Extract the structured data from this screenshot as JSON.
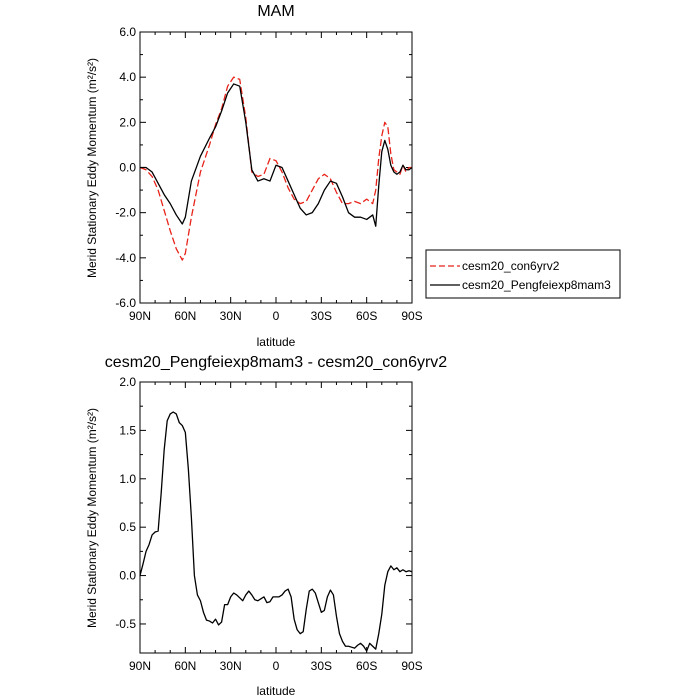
{
  "colors": {
    "control": "#e8231a",
    "experiment": "#000000"
  },
  "chart_data": [
    {
      "type": "line",
      "title": "MAM",
      "xlabel": "latitude",
      "ylabel": "Merid Stationary Eddy Momentum (m²/s²)",
      "xlim": [
        90,
        -90
      ],
      "ylim": [
        -6,
        6
      ],
      "xticks": [
        90,
        60,
        30,
        0,
        -30,
        -60,
        -90
      ],
      "xtick_labels": [
        "90N",
        "60N",
        "30N",
        "0",
        "30S",
        "60S",
        "90S"
      ],
      "yticks": [
        -6,
        -4,
        -2,
        0,
        2,
        4,
        6
      ],
      "ytick_labels": [
        "-6.0",
        "-4.0",
        "-2.0",
        "0.0",
        "2.0",
        "4.0",
        "6.0"
      ],
      "legend_position": "right",
      "series": [
        {
          "name": "cesm20_con6yrv2",
          "style": "dashed",
          "x": [
            90,
            86,
            82,
            78,
            74,
            70,
            66,
            62,
            60,
            56,
            50,
            44,
            40,
            36,
            32,
            28,
            24,
            20,
            16,
            12,
            8,
            4,
            0,
            -4,
            -8,
            -12,
            -16,
            -20,
            -24,
            -28,
            -32,
            -36,
            -40,
            -44,
            -48,
            -52,
            -56,
            -60,
            -64,
            -66,
            -68,
            -70,
            -72,
            -74,
            -76,
            -78,
            -80,
            -82,
            -84,
            -86,
            -88,
            -90
          ],
          "y": [
            0.0,
            -0.1,
            -0.4,
            -1.0,
            -1.9,
            -2.8,
            -3.6,
            -4.1,
            -3.8,
            -2.2,
            -0.2,
            1.0,
            1.9,
            2.6,
            3.6,
            4.0,
            3.9,
            2.2,
            -0.2,
            -0.4,
            -0.3,
            0.4,
            0.3,
            -0.2,
            -0.9,
            -1.4,
            -1.6,
            -1.5,
            -1.0,
            -0.5,
            -0.3,
            -0.5,
            -1.1,
            -1.6,
            -1.6,
            -1.5,
            -1.6,
            -1.4,
            -1.6,
            -1.0,
            0.4,
            1.4,
            2.0,
            1.8,
            0.6,
            -0.1,
            -0.2,
            -0.3,
            0.1,
            -0.2,
            0.0,
            0.0
          ]
        },
        {
          "name": "cesm20_Pengfeiexp8mam3",
          "style": "solid",
          "x": [
            90,
            86,
            82,
            78,
            74,
            70,
            66,
            62,
            60,
            56,
            50,
            44,
            40,
            36,
            32,
            28,
            24,
            20,
            16,
            12,
            8,
            4,
            0,
            -4,
            -8,
            -12,
            -16,
            -20,
            -24,
            -28,
            -32,
            -36,
            -40,
            -44,
            -48,
            -52,
            -56,
            -60,
            -64,
            -66,
            -68,
            -70,
            -72,
            -74,
            -76,
            -78,
            -80,
            -82,
            -84,
            -86,
            -88,
            -90
          ],
          "y": [
            0.0,
            0.0,
            -0.2,
            -0.7,
            -1.2,
            -1.6,
            -2.1,
            -2.5,
            -2.2,
            -0.6,
            0.5,
            1.3,
            1.8,
            2.5,
            3.3,
            3.7,
            3.6,
            2.0,
            -0.1,
            -0.6,
            -0.5,
            -0.6,
            0.1,
            0.0,
            -0.6,
            -1.2,
            -1.8,
            -2.1,
            -2.0,
            -1.6,
            -1.0,
            -0.6,
            -0.7,
            -1.3,
            -2.0,
            -2.2,
            -2.2,
            -2.3,
            -2.1,
            -2.6,
            -0.8,
            0.7,
            1.2,
            0.8,
            0.1,
            -0.2,
            -0.3,
            -0.2,
            0.1,
            -0.1,
            -0.1,
            0.0
          ]
        }
      ]
    },
    {
      "type": "line",
      "title": "cesm20_Pengfeiexp8mam3 - cesm20_con6yrv2",
      "xlabel": "latitude",
      "ylabel": "Merid Stationary Eddy Momentum (m²/s²)",
      "xlim": [
        90,
        -90
      ],
      "ylim": [
        -0.8,
        2.0
      ],
      "xticks": [
        90,
        60,
        30,
        0,
        -30,
        -60,
        -90
      ],
      "xtick_labels": [
        "90N",
        "60N",
        "30N",
        "0",
        "30S",
        "60S",
        "90S"
      ],
      "yticks": [
        -0.5,
        0.0,
        0.5,
        1.0,
        1.5,
        2.0
      ],
      "ytick_labels": [
        "-0.5",
        "0.0",
        "0.5",
        "1.0",
        "1.5",
        "2.0"
      ],
      "series": [
        {
          "style": "solid",
          "x": [
            90,
            88,
            86,
            84,
            82,
            80,
            78,
            76,
            74,
            72,
            70,
            68,
            66,
            64,
            62,
            60,
            58,
            56,
            54,
            52,
            50,
            48,
            46,
            44,
            42,
            40,
            38,
            36,
            34,
            32,
            30,
            28,
            26,
            24,
            22,
            20,
            18,
            16,
            14,
            12,
            10,
            8,
            6,
            4,
            2,
            0,
            -2,
            -4,
            -6,
            -8,
            -10,
            -12,
            -14,
            -16,
            -18,
            -20,
            -22,
            -24,
            -26,
            -28,
            -30,
            -32,
            -34,
            -36,
            -38,
            -40,
            -42,
            -44,
            -46,
            -48,
            -50,
            -52,
            -54,
            -56,
            -58,
            -60,
            -62,
            -64,
            -66,
            -68,
            -70,
            -72,
            -74,
            -76,
            -78,
            -80,
            -82,
            -84,
            -86,
            -88,
            -90
          ],
          "y": [
            0.0,
            0.12,
            0.25,
            0.32,
            0.42,
            0.45,
            0.46,
            0.85,
            1.3,
            1.6,
            1.67,
            1.69,
            1.67,
            1.58,
            1.55,
            1.48,
            1.1,
            0.6,
            0.0,
            -0.2,
            -0.26,
            -0.38,
            -0.46,
            -0.47,
            -0.49,
            -0.45,
            -0.51,
            -0.48,
            -0.3,
            -0.3,
            -0.22,
            -0.18,
            -0.2,
            -0.23,
            -0.26,
            -0.2,
            -0.16,
            -0.2,
            -0.25,
            -0.26,
            -0.24,
            -0.22,
            -0.28,
            -0.27,
            -0.22,
            -0.22,
            -0.22,
            -0.2,
            -0.16,
            -0.14,
            -0.22,
            -0.45,
            -0.56,
            -0.6,
            -0.58,
            -0.35,
            -0.16,
            -0.14,
            -0.18,
            -0.28,
            -0.38,
            -0.36,
            -0.22,
            -0.15,
            -0.2,
            -0.42,
            -0.6,
            -0.68,
            -0.73,
            -0.73,
            -0.74,
            -0.75,
            -0.72,
            -0.7,
            -0.73,
            -0.78,
            -0.7,
            -0.73,
            -0.76,
            -0.6,
            -0.4,
            -0.1,
            0.04,
            0.1,
            0.06,
            0.08,
            0.04,
            0.06,
            0.04,
            0.05,
            0.04
          ]
        }
      ]
    }
  ]
}
